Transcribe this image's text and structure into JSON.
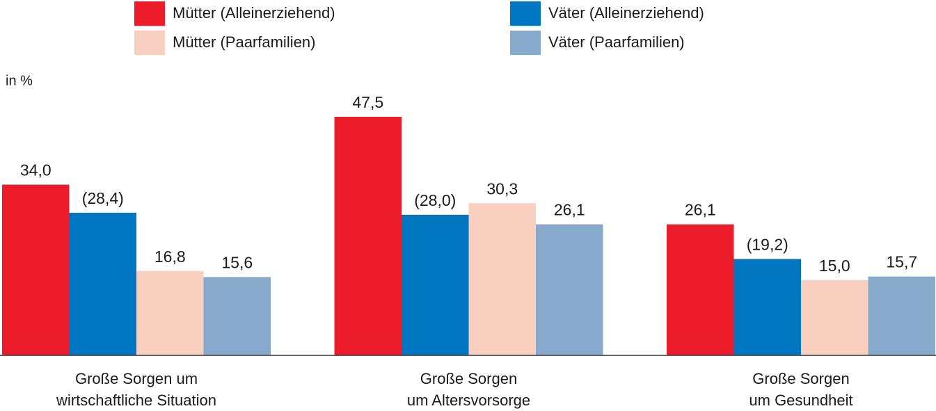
{
  "chart_data": {
    "type": "bar",
    "unit_label": "in %",
    "categories": [
      [
        "Große Sorgen um",
        "wirtschaftliche Situation"
      ],
      [
        "Große Sorgen",
        "um Altersvorsorge"
      ],
      [
        "Große Sorgen",
        "um Gesundheit"
      ]
    ],
    "series": [
      {
        "name": "Mütter (Alleinerziehend)",
        "color": "#ed1c2a",
        "values": [
          34.0,
          47.5,
          26.1
        ],
        "value_labels": [
          "34,0",
          "47,5",
          "26,1"
        ]
      },
      {
        "name": "Väter (Alleinerziehend)",
        "color": "#0077c0",
        "values": [
          28.4,
          28.0,
          19.2
        ],
        "value_labels": [
          "(28,4)",
          "(28,0)",
          "(19,2)"
        ]
      },
      {
        "name": "Mütter (Paarfamilien)",
        "color": "#f9cfc0",
        "values": [
          16.8,
          30.3,
          15.0
        ],
        "value_labels": [
          "16,8",
          "30,3",
          "15,0"
        ]
      },
      {
        "name": "Väter (Paarfamilien)",
        "color": "#86a9cc",
        "values": [
          15.6,
          26.1,
          15.7
        ],
        "value_labels": [
          "15,6",
          "26,1",
          "15,7"
        ]
      }
    ]
  }
}
